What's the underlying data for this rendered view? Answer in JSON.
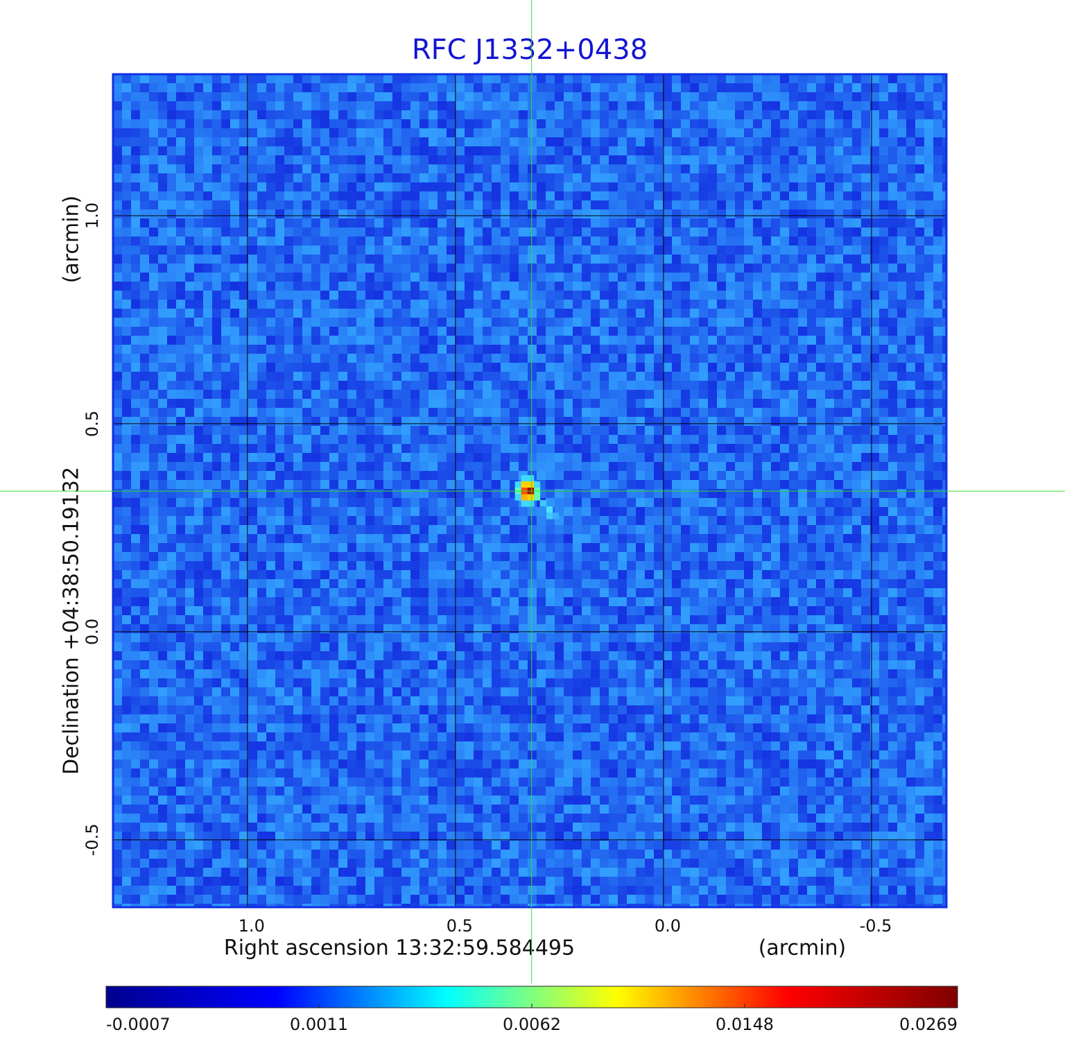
{
  "chart_data": {
    "type": "image",
    "title": "RFC J1332+0438",
    "title_color": "#1414d2",
    "x_label": "Right ascension  13:32:59.584495",
    "x_unit_label": "(arcmin)",
    "y_label": "Declination  +04:38:50.19132",
    "y_unit_label": "(arcmin)",
    "xlim": [
      1.323,
      -0.68
    ],
    "ylim": [
      -0.662,
      1.34
    ],
    "xticks": [
      {
        "value": 1,
        "label": "1.0"
      },
      {
        "value": 0.5,
        "label": "0.5"
      },
      {
        "value": 0,
        "label": "0.0"
      },
      {
        "value": -0.5,
        "label": "-0.5"
      }
    ],
    "yticks": [
      {
        "value": 1,
        "label": "1.0"
      },
      {
        "value": 0.5,
        "label": "0.5"
      },
      {
        "value": 0,
        "label": "0.0"
      },
      {
        "value": -0.5,
        "label": "-0.5"
      }
    ],
    "grid": true,
    "grid_color": "#000000",
    "crosshair": {
      "x": 0.317,
      "y": 0.338,
      "color": "#33dd33"
    },
    "colormap": [
      "#00008f",
      "#0000ff",
      "#00ffff",
      "#ffff00",
      "#ff0000",
      "#800000"
    ],
    "colorbar_ticks": [
      -0.0007,
      0.0011,
      0.0062,
      0.0148,
      0.0269
    ]
  }
}
